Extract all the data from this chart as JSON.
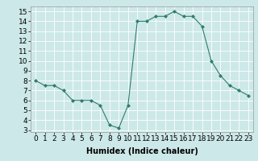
{
  "x": [
    0,
    1,
    2,
    3,
    4,
    5,
    6,
    7,
    8,
    9,
    10,
    11,
    12,
    13,
    14,
    15,
    16,
    17,
    18,
    19,
    20,
    21,
    22,
    23
  ],
  "y": [
    8,
    7.5,
    7.5,
    7,
    6,
    6,
    6,
    5.5,
    3.5,
    3.2,
    5.5,
    14,
    14,
    14.5,
    14.5,
    15,
    14.5,
    14.5,
    13.5,
    10,
    8.5,
    7.5,
    7,
    6.5
  ],
  "line_color": "#2e7d6e",
  "marker": "D",
  "marker_size": 2,
  "bg_color": "#cde8e8",
  "grid_color": "#ffffff",
  "xlabel": "Humidex (Indice chaleur)",
  "ylim": [
    2.8,
    15.5
  ],
  "xlim": [
    -0.5,
    23.5
  ],
  "yticks": [
    3,
    4,
    5,
    6,
    7,
    8,
    9,
    10,
    11,
    12,
    13,
    14,
    15
  ],
  "xticks": [
    0,
    1,
    2,
    3,
    4,
    5,
    6,
    7,
    8,
    9,
    10,
    11,
    12,
    13,
    14,
    15,
    16,
    17,
    18,
    19,
    20,
    21,
    22,
    23
  ],
  "label_fontsize": 7,
  "tick_fontsize": 6.5
}
